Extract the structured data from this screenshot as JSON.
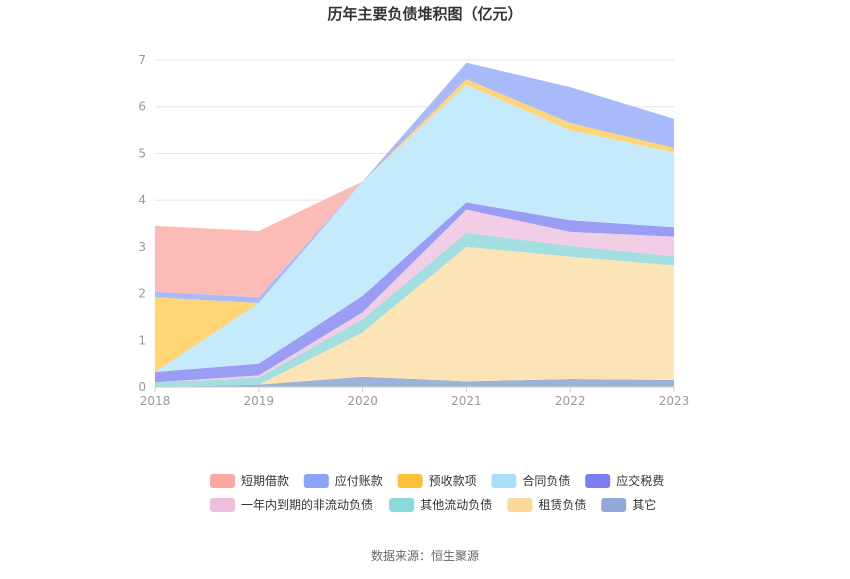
{
  "chart_data": {
    "type": "area",
    "stacked": true,
    "title": "历年主要负债堆积图（亿元）",
    "x": [
      "2018",
      "2019",
      "2020",
      "2021",
      "2022",
      "2023"
    ],
    "ylim": [
      0,
      7
    ],
    "yticks": [
      "0",
      "1",
      "2",
      "3",
      "4",
      "5",
      "6",
      "7"
    ],
    "grid": true,
    "legend_position": "bottom",
    "source": "数据来源：恒生聚源",
    "series": [
      {
        "name": "其它",
        "color": "#9bb3da",
        "values": [
          0.0,
          0.05,
          0.22,
          0.12,
          0.17,
          0.15
        ]
      },
      {
        "name": "租赁负债",
        "color": "#fde4b6",
        "values": [
          0.0,
          0.0,
          0.95,
          2.88,
          2.62,
          2.45
        ]
      },
      {
        "name": "其他流动负债",
        "color": "#a3dfe0",
        "values": [
          0.1,
          0.15,
          0.28,
          0.3,
          0.23,
          0.2
        ]
      },
      {
        "name": "一年内到期的非流动负债",
        "color": "#f2cde6",
        "values": [
          0.0,
          0.05,
          0.15,
          0.5,
          0.3,
          0.42
        ]
      },
      {
        "name": "应交税费",
        "color": "#9b9cf3",
        "values": [
          0.22,
          0.25,
          0.35,
          0.15,
          0.25,
          0.2
        ]
      },
      {
        "name": "合同负债",
        "color": "#c4eafc",
        "values": [
          0.0,
          1.3,
          2.45,
          2.52,
          1.93,
          1.6
        ]
      },
      {
        "name": "预收款项",
        "color": "#ffd577",
        "values": [
          1.6,
          0.0,
          0.0,
          0.12,
          0.15,
          0.1
        ]
      },
      {
        "name": "应付账款",
        "color": "#a8baf9",
        "values": [
          0.12,
          0.12,
          0.0,
          0.35,
          0.77,
          0.62
        ]
      },
      {
        "name": "短期借款",
        "color": "#fbbcb8",
        "values": [
          1.41,
          1.42,
          0.0,
          0.0,
          0.0,
          0.0
        ]
      }
    ],
    "legend": [
      {
        "name": "短期借款",
        "color": "#fca79f"
      },
      {
        "name": "应付账款",
        "color": "#89a4f8"
      },
      {
        "name": "预收款项",
        "color": "#fbc13a"
      },
      {
        "name": "合同负债",
        "color": "#a9dffa"
      },
      {
        "name": "应交税费",
        "color": "#7b7ef2"
      },
      {
        "name": "一年内到期的非流动负债",
        "color": "#eebde0"
      },
      {
        "name": "其他流动负债",
        "color": "#8bd9d9"
      },
      {
        "name": "租赁负债",
        "color": "#fcd99a"
      },
      {
        "name": "其它",
        "color": "#92a9d8"
      }
    ]
  }
}
